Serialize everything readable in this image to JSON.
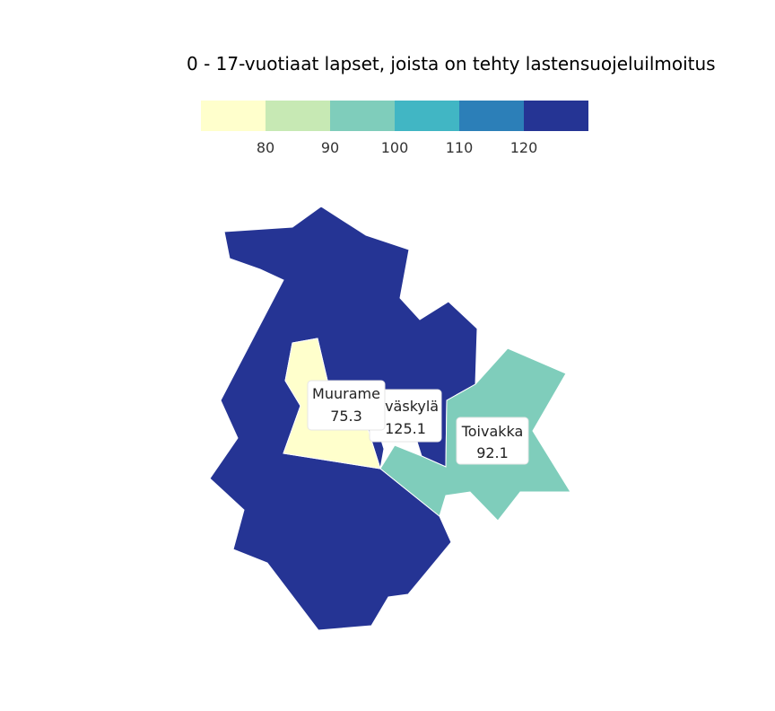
{
  "title": "0 - 17-vuotiaat lapset, joista on tehty lastensuojeluilmoitus",
  "legend": {
    "colors": [
      "#ffffcc",
      "#c7e9b4",
      "#7fcdbb",
      "#41b6c4",
      "#2c7fb8",
      "#253494"
    ],
    "ticks": [
      "80",
      "90",
      "100",
      "110",
      "120"
    ]
  },
  "regions": [
    {
      "name": "Jyväskylä",
      "value": "125.1",
      "color": "#253494"
    },
    {
      "name": "Muurame",
      "value": "75.3",
      "color": "#ffffcc"
    },
    {
      "name": "Toivakka",
      "value": "92.1",
      "color": "#7fcdbb"
    }
  ]
}
